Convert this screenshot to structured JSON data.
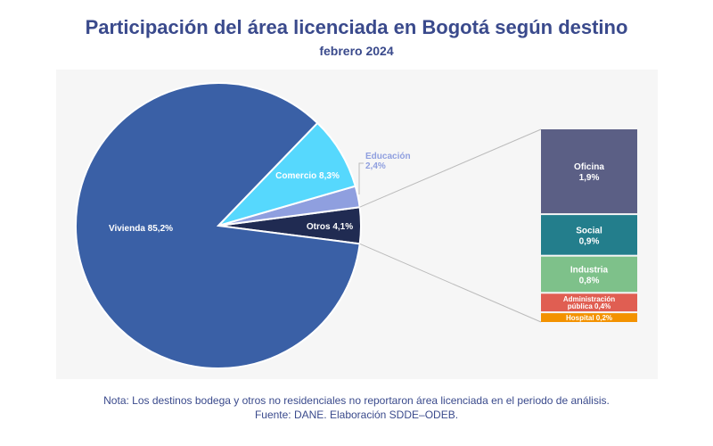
{
  "chart_data": {
    "type": "pie",
    "title": "Participación del área licenciada en Bogotá según destino",
    "subtitle": "febrero 2024",
    "slices": [
      {
        "label": "Otros",
        "value": 4.1,
        "text": "Otros 4,1%",
        "color": "#202b52"
      },
      {
        "label": "Educación",
        "value": 2.4,
        "text": "2,4%",
        "color": "#8f9fdf"
      },
      {
        "label": "Comercio",
        "value": 8.3,
        "text": "Comercio 8,3%",
        "color": "#56d8fd"
      },
      {
        "label": "Vivienda",
        "value": 85.2,
        "text": "Vivienda 85,2%",
        "color": "#3a60a6"
      }
    ],
    "education_label": "Educación",
    "breakdown_of": "Otros",
    "breakdown": [
      {
        "label": "Oficina",
        "value": 1.9,
        "text": "1,9%",
        "color": "#5b5f85"
      },
      {
        "label": "Social",
        "value": 0.9,
        "text": "0,9%",
        "color": "#237e8c"
      },
      {
        "label": "Industria",
        "value": 0.8,
        "text": "0,8%",
        "color": "#7ec18a"
      },
      {
        "label": "Administración pública",
        "value": 0.4,
        "text": "Administración pública 0,4%",
        "color": "#e05e52"
      },
      {
        "label": "Hospital",
        "value": 0.2,
        "text": "Hospital 0,2%",
        "color": "#f39200"
      }
    ]
  },
  "notes": {
    "nota": "Nota: Los destinos bodega y otros no residenciales no reportaron área licenciada en el periodo de análisis.",
    "fuente": "Fuente: DANE. Elaboración SDDE–ODEB."
  }
}
